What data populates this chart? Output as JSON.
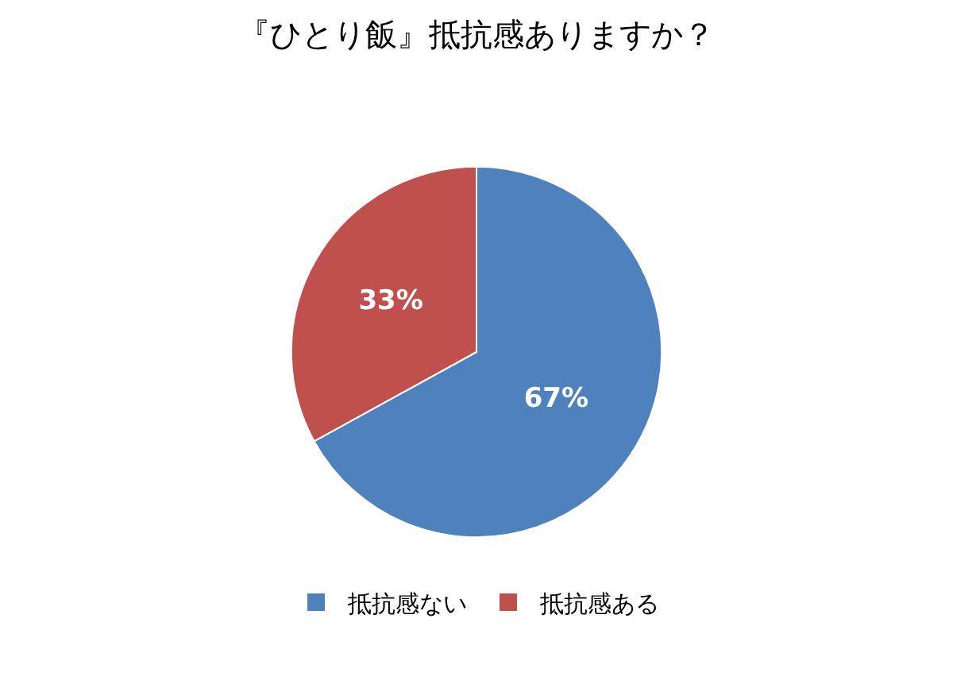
{
  "chart_data": {
    "type": "pie",
    "title": "『ひとり飯』抵抗感ありますか？",
    "categories": [
      "抵抗感ない",
      "抵抗感ある"
    ],
    "values": [
      67,
      33
    ],
    "colors": [
      "#4f81bd",
      "#c0504d"
    ],
    "value_labels": [
      "67%",
      "33%"
    ],
    "legend": "bottom"
  }
}
